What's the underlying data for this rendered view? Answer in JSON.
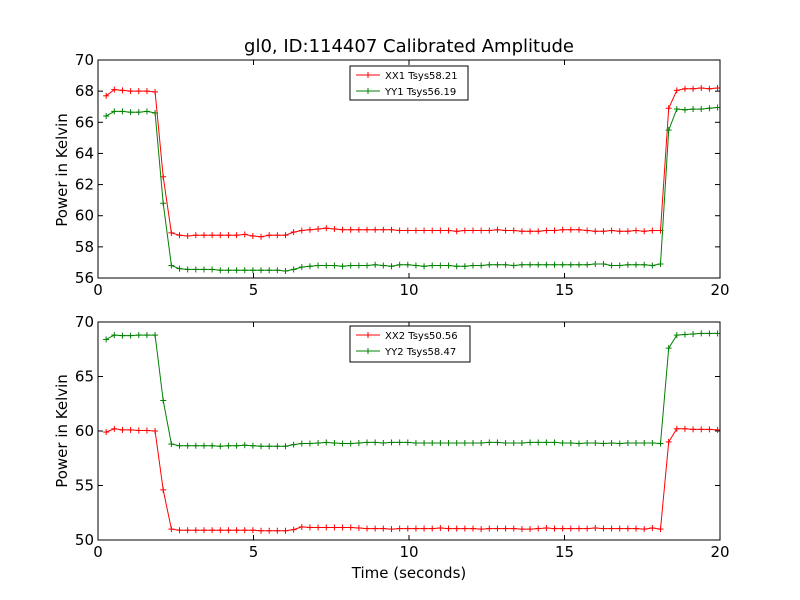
{
  "chart_data": [
    {
      "type": "line",
      "title": "gl0, ID:114407 Calibrated Amplitude",
      "xlabel": "",
      "ylabel": "Power in Kelvin",
      "xlim": [
        0,
        20
      ],
      "ylim": [
        56,
        70
      ],
      "xticks": [
        0,
        5,
        10,
        15,
        20
      ],
      "yticks": [
        56,
        58,
        60,
        62,
        64,
        66,
        68,
        70
      ],
      "legend_position": "top-center",
      "grid": false,
      "x": [
        0.262,
        0.524,
        0.786,
        1.048,
        1.311,
        1.573,
        1.835,
        2.097,
        2.359,
        2.621,
        2.883,
        3.145,
        3.408,
        3.67,
        3.932,
        4.194,
        4.456,
        4.718,
        4.98,
        5.242,
        5.505,
        5.767,
        6.029,
        6.291,
        6.553,
        6.815,
        7.077,
        7.34,
        7.602,
        7.864,
        8.126,
        8.388,
        8.65,
        8.912,
        9.174,
        9.437,
        9.699,
        9.961,
        10.223,
        10.485,
        10.747,
        11.009,
        11.271,
        11.534,
        11.796,
        12.058,
        12.32,
        12.582,
        12.844,
        13.106,
        13.368,
        13.631,
        13.893,
        14.155,
        14.417,
        14.679,
        14.941,
        15.203,
        15.466,
        15.728,
        15.99,
        16.252,
        16.514,
        16.776,
        17.038,
        17.3,
        17.563,
        17.825,
        18.087,
        18.349,
        18.611,
        18.873,
        19.135,
        19.397,
        19.66,
        19.922
      ],
      "series": [
        {
          "name": "XX1 Tsys58.21",
          "color": "#ff0000",
          "values": [
            67.7,
            68.1,
            68.05,
            68.0,
            68.0,
            68.0,
            67.95,
            62.5,
            58.9,
            58.75,
            58.7,
            58.75,
            58.75,
            58.75,
            58.75,
            58.75,
            58.75,
            58.8,
            58.7,
            58.65,
            58.75,
            58.75,
            58.75,
            58.95,
            59.05,
            59.1,
            59.15,
            59.2,
            59.15,
            59.1,
            59.1,
            59.1,
            59.1,
            59.1,
            59.1,
            59.1,
            59.05,
            59.05,
            59.05,
            59.05,
            59.05,
            59.05,
            59.05,
            59.0,
            59.05,
            59.05,
            59.05,
            59.05,
            59.1,
            59.05,
            59.05,
            59.0,
            59.0,
            59.0,
            59.05,
            59.05,
            59.1,
            59.1,
            59.1,
            59.05,
            59.0,
            59.0,
            59.05,
            59.0,
            59.0,
            59.05,
            59.0,
            59.05,
            59.05,
            66.9,
            68.05,
            68.15,
            68.15,
            68.2,
            68.15,
            68.2
          ]
        },
        {
          "name": "YY1 Tsys56.19",
          "color": "#008000",
          "values": [
            66.4,
            66.7,
            66.7,
            66.65,
            66.65,
            66.7,
            66.6,
            60.8,
            56.8,
            56.6,
            56.55,
            56.55,
            56.55,
            56.55,
            56.5,
            56.5,
            56.5,
            56.5,
            56.5,
            56.5,
            56.5,
            56.5,
            56.45,
            56.55,
            56.7,
            56.75,
            56.8,
            56.8,
            56.8,
            56.75,
            56.8,
            56.8,
            56.8,
            56.85,
            56.8,
            56.75,
            56.85,
            56.85,
            56.8,
            56.75,
            56.8,
            56.8,
            56.8,
            56.75,
            56.75,
            56.8,
            56.8,
            56.85,
            56.85,
            56.85,
            56.8,
            56.85,
            56.85,
            56.85,
            56.85,
            56.85,
            56.85,
            56.85,
            56.85,
            56.85,
            56.9,
            56.9,
            56.8,
            56.8,
            56.85,
            56.85,
            56.85,
            56.8,
            56.9,
            65.5,
            66.85,
            66.8,
            66.85,
            66.85,
            66.9,
            66.95
          ]
        }
      ]
    },
    {
      "type": "line",
      "title": "",
      "xlabel": "Time (seconds)",
      "ylabel": "Power in Kelvin",
      "xlim": [
        0,
        20
      ],
      "ylim": [
        50,
        70
      ],
      "xticks": [
        0,
        5,
        10,
        15,
        20
      ],
      "yticks": [
        50,
        55,
        60,
        65,
        70
      ],
      "legend_position": "top-center",
      "grid": false,
      "x": [
        0.262,
        0.524,
        0.786,
        1.048,
        1.311,
        1.573,
        1.835,
        2.097,
        2.359,
        2.621,
        2.883,
        3.145,
        3.408,
        3.67,
        3.932,
        4.194,
        4.456,
        4.718,
        4.98,
        5.242,
        5.505,
        5.767,
        6.029,
        6.291,
        6.553,
        6.815,
        7.077,
        7.34,
        7.602,
        7.864,
        8.126,
        8.388,
        8.65,
        8.912,
        9.174,
        9.437,
        9.699,
        9.961,
        10.223,
        10.485,
        10.747,
        11.009,
        11.271,
        11.534,
        11.796,
        12.058,
        12.32,
        12.582,
        12.844,
        13.106,
        13.368,
        13.631,
        13.893,
        14.155,
        14.417,
        14.679,
        14.941,
        15.203,
        15.466,
        15.728,
        15.99,
        16.252,
        16.514,
        16.776,
        17.038,
        17.3,
        17.563,
        17.825,
        18.087,
        18.349,
        18.611,
        18.873,
        19.135,
        19.397,
        19.66,
        19.922
      ],
      "series": [
        {
          "name": "XX2 Tsys50.56",
          "color": "#ff0000",
          "values": [
            59.9,
            60.2,
            60.1,
            60.1,
            60.05,
            60.05,
            60.0,
            54.6,
            51.0,
            50.9,
            50.9,
            50.9,
            50.9,
            50.9,
            50.9,
            50.9,
            50.9,
            50.9,
            50.9,
            50.85,
            50.85,
            50.85,
            50.85,
            50.95,
            51.2,
            51.15,
            51.15,
            51.15,
            51.15,
            51.15,
            51.15,
            51.1,
            51.05,
            51.05,
            51.05,
            51.0,
            51.05,
            51.05,
            51.05,
            51.05,
            51.05,
            51.1,
            51.05,
            51.05,
            51.05,
            51.05,
            51.0,
            51.05,
            51.05,
            51.05,
            51.05,
            51.0,
            51.0,
            51.05,
            51.1,
            51.05,
            51.05,
            51.05,
            51.05,
            51.05,
            51.1,
            51.05,
            51.05,
            51.05,
            51.05,
            51.05,
            51.0,
            51.1,
            51.0,
            59.0,
            60.2,
            60.2,
            60.15,
            60.15,
            60.15,
            60.1
          ]
        },
        {
          "name": "YY2 Tsys58.47",
          "color": "#008000",
          "values": [
            68.4,
            68.8,
            68.75,
            68.75,
            68.8,
            68.8,
            68.8,
            62.8,
            58.8,
            58.65,
            58.65,
            58.65,
            58.65,
            58.65,
            58.6,
            58.65,
            58.65,
            58.7,
            58.65,
            58.6,
            58.6,
            58.6,
            58.6,
            58.75,
            58.85,
            58.85,
            58.9,
            58.95,
            58.9,
            58.85,
            58.85,
            58.9,
            58.95,
            58.95,
            58.9,
            58.95,
            58.95,
            58.95,
            58.9,
            58.9,
            58.9,
            58.9,
            58.9,
            58.9,
            58.9,
            58.9,
            58.9,
            58.95,
            58.95,
            58.9,
            58.9,
            58.9,
            58.95,
            58.95,
            58.95,
            58.95,
            58.9,
            58.9,
            58.85,
            58.9,
            58.9,
            58.85,
            58.9,
            58.85,
            58.9,
            58.9,
            58.9,
            58.9,
            58.85,
            67.6,
            68.8,
            68.85,
            68.9,
            68.95,
            68.95,
            68.95
          ]
        }
      ]
    }
  ]
}
